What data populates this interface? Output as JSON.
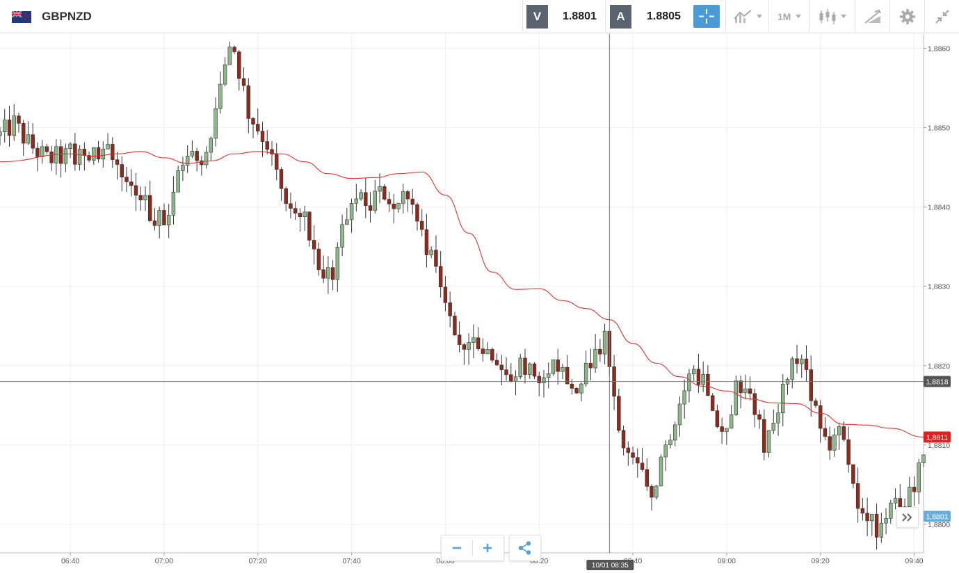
{
  "header": {
    "symbol": "GBPNZD",
    "bid_label": "V",
    "bid_value": "1.8801",
    "ask_label": "A",
    "ask_value": "1.8805",
    "timeframe": "1M"
  },
  "icons": {
    "flag": "gbp-nzd-flag-icon",
    "crosshair": "crosshair-icon",
    "indicators": "indicators-icon",
    "chart_type": "candlestick-icon",
    "drawing": "drawing-tools-icon",
    "settings": "gear-icon",
    "collapse": "collapse-icon",
    "zoom_out": "minus-icon",
    "zoom_in": "plus-icon",
    "share": "share-icon",
    "scroll": "double-chevron-right-icon"
  },
  "colors": {
    "bull": "#8db78b",
    "bear": "#8e2a1c",
    "ma": "#e03030",
    "grid": "#efefef",
    "current_price_badge": "#6aaedc",
    "ma_badge": "#e02020",
    "crosshair_badge": "#555555"
  },
  "chart_data": {
    "type": "candlestick",
    "interval": "1M",
    "y_range": [
      1.87964,
      1.88618
    ],
    "x_range": [
      "06:25",
      "09:42"
    ],
    "y_ticks": [
      "1,8860",
      "1,8850",
      "1,8840",
      "1,8830",
      "1,8820",
      "1,8810",
      "1,8800"
    ],
    "y_tick_values": [
      1.886,
      1.885,
      1.884,
      1.883,
      1.882,
      1.881,
      1.88
    ],
    "x_ticks": [
      "06:40",
      "07:00",
      "07:20",
      "07:40",
      "08:00",
      "08:20",
      "08:40",
      "09:00",
      "09:20",
      "09:40"
    ],
    "crosshair": {
      "time_label": "10/01 08:35",
      "price_label": "1,8818",
      "time": "08:35",
      "price": 1.8818
    },
    "ma_label": "1,8811",
    "ma_value": 1.8811,
    "last_price_label": "1,8801",
    "last_price": 1.8801,
    "ma_anchors": [
      [
        "06:25",
        1.88457
      ],
      [
        "06:40",
        1.88467
      ],
      [
        "06:45",
        1.88464
      ],
      [
        "06:50",
        1.88467
      ],
      [
        "06:55",
        1.8847
      ],
      [
        "07:00",
        1.88462
      ],
      [
        "07:05",
        1.88455
      ],
      [
        "07:10",
        1.88458
      ],
      [
        "07:15",
        1.88467
      ],
      [
        "07:20",
        1.8847
      ],
      [
        "07:25",
        1.88467
      ],
      [
        "07:30",
        1.88457
      ],
      [
        "07:35",
        1.88442
      ],
      [
        "07:40",
        1.88436
      ],
      [
        "07:45",
        1.88437
      ],
      [
        "07:50",
        1.88442
      ],
      [
        "07:55",
        1.88444
      ],
      [
        "08:00",
        1.88415
      ],
      [
        "08:05",
        1.88367
      ],
      [
        "08:10",
        1.88318
      ],
      [
        "08:15",
        1.88296
      ],
      [
        "08:20",
        1.88297
      ],
      [
        "08:25",
        1.88282
      ],
      [
        "08:30",
        1.88272
      ],
      [
        "08:35",
        1.88258
      ],
      [
        "08:40",
        1.88228
      ],
      [
        "08:45",
        1.88203
      ],
      [
        "08:50",
        1.88186
      ],
      [
        "08:55",
        1.88174
      ],
      [
        "09:00",
        1.88168
      ],
      [
        "09:05",
        1.88158
      ],
      [
        "09:10",
        1.88153
      ],
      [
        "09:15",
        1.88152
      ],
      [
        "09:20",
        1.8814
      ],
      [
        "09:25",
        1.88126
      ],
      [
        "09:30",
        1.88125
      ],
      [
        "09:35",
        1.88121
      ],
      [
        "09:42",
        1.8811
      ]
    ],
    "price_anchors": [
      [
        "06:25",
        1.8849
      ],
      [
        "06:28",
        1.88505
      ],
      [
        "06:31",
        1.8848
      ],
      [
        "06:35",
        1.8846
      ],
      [
        "06:40",
        1.88465
      ],
      [
        "06:45",
        1.8847
      ],
      [
        "06:50",
        1.88455
      ],
      [
        "06:53",
        1.8843
      ],
      [
        "06:57",
        1.88395
      ],
      [
        "07:00",
        1.8838
      ],
      [
        "07:02",
        1.8841
      ],
      [
        "07:04",
        1.8846
      ],
      [
        "07:08",
        1.88455
      ],
      [
        "07:11",
        1.8851
      ],
      [
        "07:13",
        1.8858
      ],
      [
        "07:15",
        1.886
      ],
      [
        "07:18",
        1.8852
      ],
      [
        "07:22",
        1.8848
      ],
      [
        "07:25",
        1.8843
      ],
      [
        "07:28",
        1.88395
      ],
      [
        "07:31",
        1.88365
      ],
      [
        "07:34",
        1.8832
      ],
      [
        "07:36",
        1.883
      ],
      [
        "07:38",
        1.88375
      ],
      [
        "07:40",
        1.884
      ],
      [
        "07:43",
        1.8841
      ],
      [
        "07:48",
        1.8842
      ],
      [
        "07:53",
        1.88405
      ],
      [
        "07:55",
        1.8837
      ],
      [
        "07:58",
        1.8832
      ],
      [
        "08:00",
        1.8828
      ],
      [
        "08:02",
        1.88245
      ],
      [
        "08:05",
        1.8822
      ],
      [
        "08:08",
        1.88215
      ],
      [
        "08:11",
        1.88195
      ],
      [
        "08:13",
        1.8818
      ],
      [
        "08:16",
        1.88205
      ],
      [
        "08:20",
        1.8819
      ],
      [
        "08:23",
        1.8821
      ],
      [
        "08:26",
        1.88185
      ],
      [
        "08:29",
        1.88165
      ],
      [
        "08:31",
        1.88215
      ],
      [
        "08:34",
        1.88245
      ],
      [
        "08:36",
        1.8815
      ],
      [
        "08:38",
        1.88095
      ],
      [
        "08:40",
        1.8808
      ],
      [
        "08:42",
        1.88055
      ],
      [
        "08:44",
        1.88035
      ],
      [
        "08:46",
        1.88075
      ],
      [
        "08:48",
        1.8811
      ],
      [
        "08:50",
        1.88145
      ],
      [
        "08:53",
        1.882
      ],
      [
        "08:55",
        1.8818
      ],
      [
        "08:57",
        1.8813
      ],
      [
        "09:00",
        1.8812
      ],
      [
        "09:02",
        1.88185
      ],
      [
        "09:05",
        1.8816
      ],
      [
        "09:08",
        1.881
      ],
      [
        "09:11",
        1.8815
      ],
      [
        "09:14",
        1.882
      ],
      [
        "09:16",
        1.8821
      ],
      [
        "09:18",
        1.8817
      ],
      [
        "09:20",
        1.8813
      ],
      [
        "09:22",
        1.881
      ],
      [
        "09:24",
        1.8813
      ],
      [
        "09:26",
        1.8807
      ],
      [
        "09:28",
        1.8802
      ],
      [
        "09:30",
        1.88005
      ],
      [
        "09:33",
        1.8799
      ],
      [
        "09:35",
        1.8802
      ],
      [
        "09:38",
        1.88015
      ],
      [
        "09:40",
        1.8805
      ],
      [
        "09:42",
        1.8808
      ]
    ]
  }
}
